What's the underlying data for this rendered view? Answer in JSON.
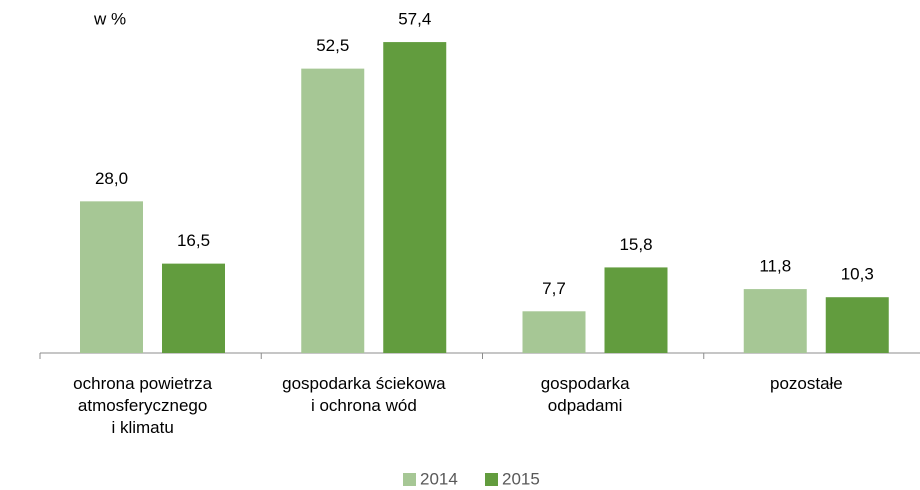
{
  "chart_data": {
    "type": "bar",
    "unit_label": "w %",
    "categories": [
      "ochrona powietrza\natmosferycznego\ni klimatu",
      "gospodarka ściekowa\ni ochrona wód",
      "gospodarka\nodpadami",
      "pozostałe"
    ],
    "series": [
      {
        "name": "2014",
        "color": "#a6c795",
        "values": [
          28.0,
          52.5,
          7.7,
          11.8
        ],
        "value_labels": [
          "28,0",
          "52,5",
          "7,7",
          "11,8"
        ]
      },
      {
        "name": "2015",
        "color": "#629c3e",
        "values": [
          16.5,
          57.4,
          15.8,
          10.3
        ],
        "value_labels": [
          "16,5",
          "57,4",
          "15,8",
          "10,3"
        ]
      }
    ],
    "ylim": [
      0,
      60
    ],
    "legend": "bottom"
  }
}
